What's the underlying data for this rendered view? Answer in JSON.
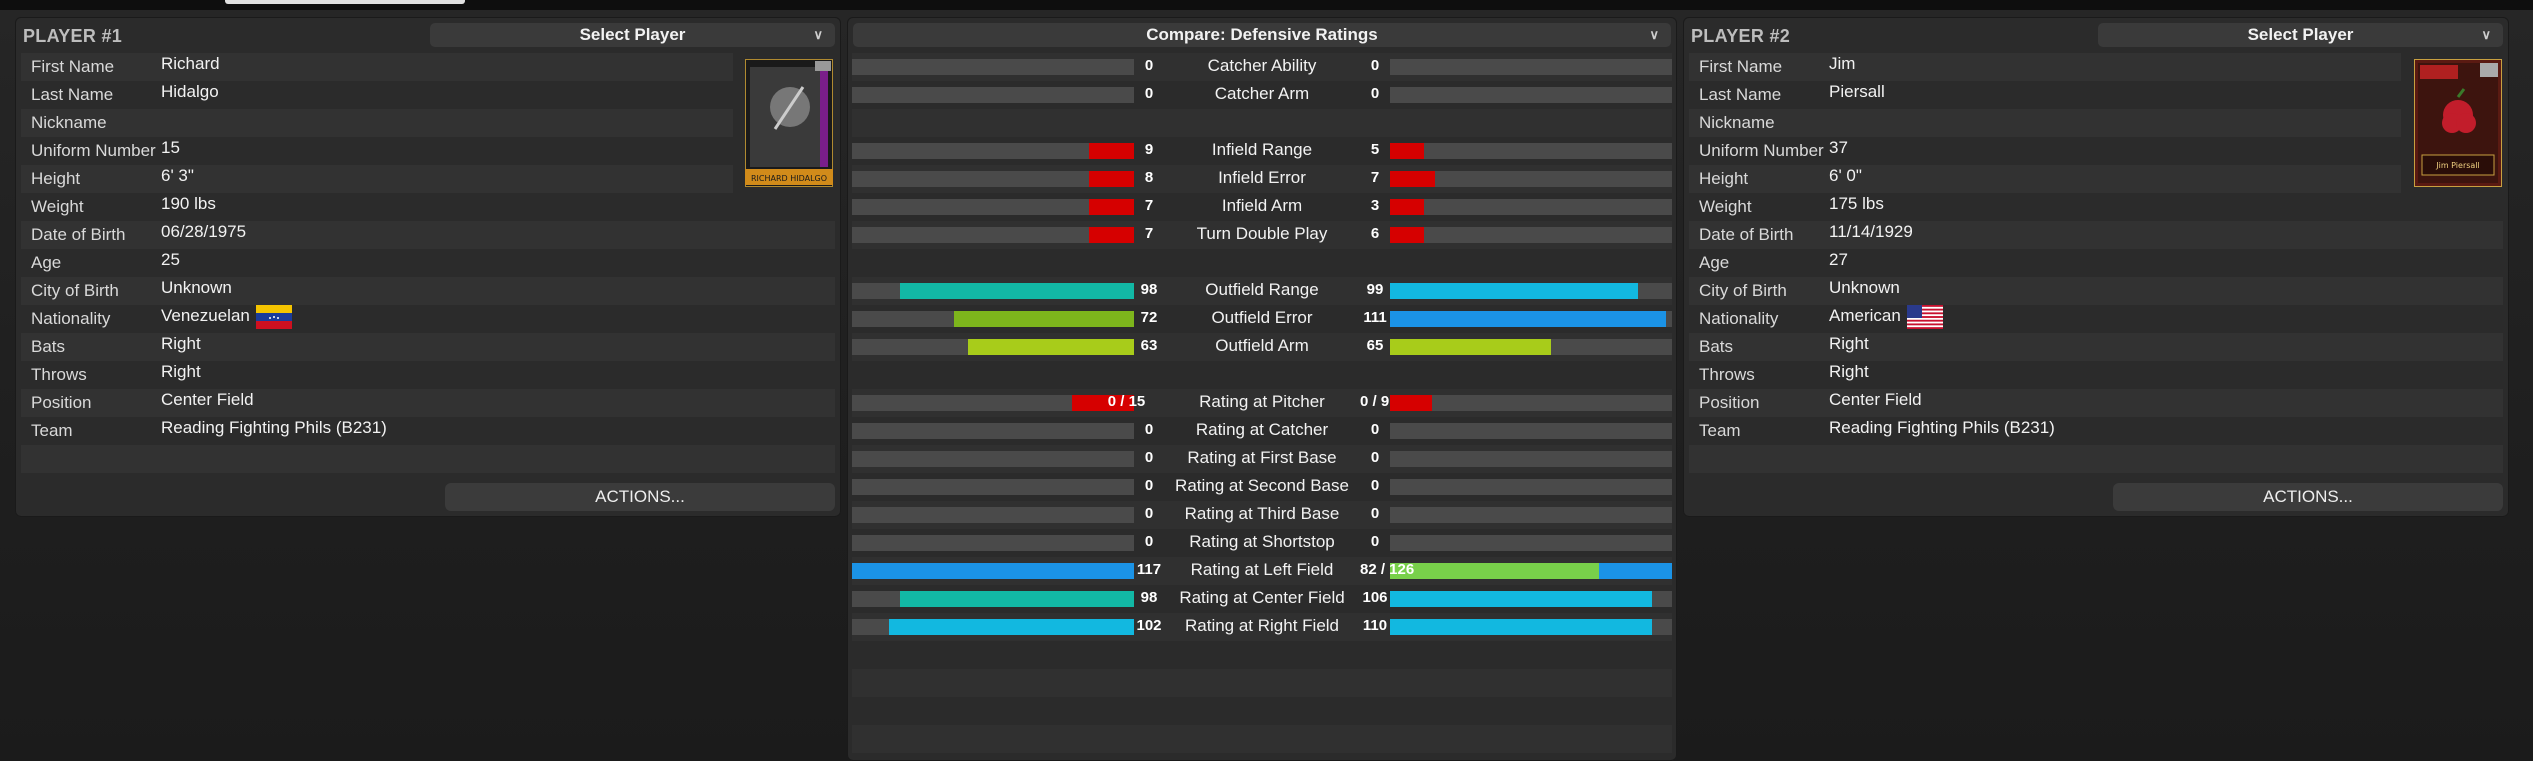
{
  "colors": {
    "red": "#d60000",
    "teal": "#12b8a5",
    "green": "#7db51c",
    "lime": "#a8cc1a",
    "lightgreen": "#78d04a",
    "blue": "#1b93e6",
    "cyan": "#12b8e0"
  },
  "player1": {
    "title": "PLAYER #1",
    "select_label": "Select Player",
    "card_name": "RICHARD HIDALGO",
    "actions_label": "ACTIONS...",
    "fields": [
      {
        "label": "First Name",
        "value": "Richard"
      },
      {
        "label": "Last Name",
        "value": "Hidalgo"
      },
      {
        "label": "Nickname",
        "value": ""
      },
      {
        "label": "Uniform Number",
        "value": "15"
      },
      {
        "label": "Height",
        "value": "6' 3\""
      },
      {
        "label": "Weight",
        "value": "190 lbs"
      },
      {
        "label": "Date of Birth",
        "value": "06/28/1975"
      },
      {
        "label": "Age",
        "value": "25"
      },
      {
        "label": "City of Birth",
        "value": "Unknown"
      },
      {
        "label": "Nationality",
        "value": "Venezuelan",
        "flag": "venezuela-flag"
      },
      {
        "label": "Bats",
        "value": "Right"
      },
      {
        "label": "Throws",
        "value": "Right"
      },
      {
        "label": "Position",
        "value": "Center Field"
      },
      {
        "label": "Team",
        "value": "Reading Fighting Phils (B231)"
      }
    ]
  },
  "player2": {
    "title": "PLAYER #2",
    "select_label": "Select Player",
    "card_name": "Jim Piersall",
    "actions_label": "ACTIONS...",
    "fields": [
      {
        "label": "First Name",
        "value": "Jim"
      },
      {
        "label": "Last Name",
        "value": "Piersall"
      },
      {
        "label": "Nickname",
        "value": ""
      },
      {
        "label": "Uniform Number",
        "value": "37"
      },
      {
        "label": "Height",
        "value": "6' 0\""
      },
      {
        "label": "Weight",
        "value": "175 lbs"
      },
      {
        "label": "Date of Birth",
        "value": "11/14/1929"
      },
      {
        "label": "Age",
        "value": "27"
      },
      {
        "label": "City of Birth",
        "value": "Unknown"
      },
      {
        "label": "Nationality",
        "value": "American",
        "flag": "usa-flag"
      },
      {
        "label": "Bats",
        "value": "Right"
      },
      {
        "label": "Throws",
        "value": "Right"
      },
      {
        "label": "Position",
        "value": "Center Field"
      },
      {
        "label": "Team",
        "value": "Reading Fighting Phils (B231)"
      }
    ]
  },
  "compare": {
    "select_label": "Compare: Defensive Ratings",
    "rows": [
      {
        "stat": "Catcher Ability",
        "left": {
          "text": "0",
          "frac": 0,
          "color": "red"
        },
        "right": {
          "text": "0",
          "frac": 0,
          "color": "red"
        }
      },
      {
        "stat": "Catcher Arm",
        "left": {
          "text": "0",
          "frac": 0,
          "color": "red"
        },
        "right": {
          "text": "0",
          "frac": 0,
          "color": "red"
        }
      },
      null,
      {
        "stat": "Infield Range",
        "left": {
          "text": "9",
          "frac": 0.16,
          "color": "red"
        },
        "right": {
          "text": "5",
          "frac": 0.12,
          "color": "red"
        }
      },
      {
        "stat": "Infield Error",
        "left": {
          "text": "8",
          "frac": 0.16,
          "color": "red"
        },
        "right": {
          "text": "7",
          "frac": 0.16,
          "color": "red"
        }
      },
      {
        "stat": "Infield Arm",
        "left": {
          "text": "7",
          "frac": 0.16,
          "color": "red"
        },
        "right": {
          "text": "3",
          "frac": 0.12,
          "color": "red"
        }
      },
      {
        "stat": "Turn Double Play",
        "left": {
          "text": "7",
          "frac": 0.16,
          "color": "red"
        },
        "right": {
          "text": "6",
          "frac": 0.12,
          "color": "red"
        }
      },
      null,
      {
        "stat": "Outfield Range",
        "left": {
          "text": "98",
          "frac": 0.83,
          "color": "teal"
        },
        "right": {
          "text": "99",
          "frac": 0.88,
          "color": "cyan"
        }
      },
      {
        "stat": "Outfield Error",
        "left": {
          "text": "72",
          "frac": 0.64,
          "color": "green"
        },
        "right": {
          "text": "111",
          "frac": 0.98,
          "color": "blue"
        }
      },
      {
        "stat": "Outfield Arm",
        "left": {
          "text": "63",
          "frac": 0.59,
          "color": "lime"
        },
        "right": {
          "text": "65",
          "frac": 0.57,
          "color": "lime"
        }
      },
      null,
      {
        "stat": "Rating at Pitcher",
        "left": {
          "text": "0 / 15",
          "frac": 0.22,
          "color": "red"
        },
        "right": {
          "text": "0 / 9",
          "frac": 0.15,
          "color": "red"
        }
      },
      {
        "stat": "Rating at Catcher",
        "left": {
          "text": "0",
          "frac": 0,
          "color": "red"
        },
        "right": {
          "text": "0",
          "frac": 0,
          "color": "red"
        }
      },
      {
        "stat": "Rating at First Base",
        "left": {
          "text": "0",
          "frac": 0,
          "color": "red"
        },
        "right": {
          "text": "0",
          "frac": 0,
          "color": "red"
        }
      },
      {
        "stat": "Rating at Second Base",
        "left": {
          "text": "0",
          "frac": 0,
          "color": "red"
        },
        "right": {
          "text": "0",
          "frac": 0,
          "color": "red"
        }
      },
      {
        "stat": "Rating at Third Base",
        "left": {
          "text": "0",
          "frac": 0,
          "color": "red"
        },
        "right": {
          "text": "0",
          "frac": 0,
          "color": "red"
        }
      },
      {
        "stat": "Rating at Shortstop",
        "left": {
          "text": "0",
          "frac": 0,
          "color": "red"
        },
        "right": {
          "text": "0",
          "frac": 0,
          "color": "red"
        }
      },
      {
        "stat": "Rating at Left Field",
        "left": {
          "text": "117",
          "frac": 1.0,
          "color": "blue"
        },
        "right": {
          "text": "82 / 126",
          "frac": 0.74,
          "color": "lightgreen",
          "bg_color": "blue"
        }
      },
      {
        "stat": "Rating at Center Field",
        "left": {
          "text": "98",
          "frac": 0.83,
          "color": "teal"
        },
        "right": {
          "text": "106",
          "frac": 0.93,
          "color": "cyan"
        }
      },
      {
        "stat": "Rating at Right Field",
        "left": {
          "text": "102",
          "frac": 0.87,
          "color": "cyan"
        },
        "right": {
          "text": "110",
          "frac": 0.93,
          "color": "cyan"
        }
      }
    ]
  }
}
